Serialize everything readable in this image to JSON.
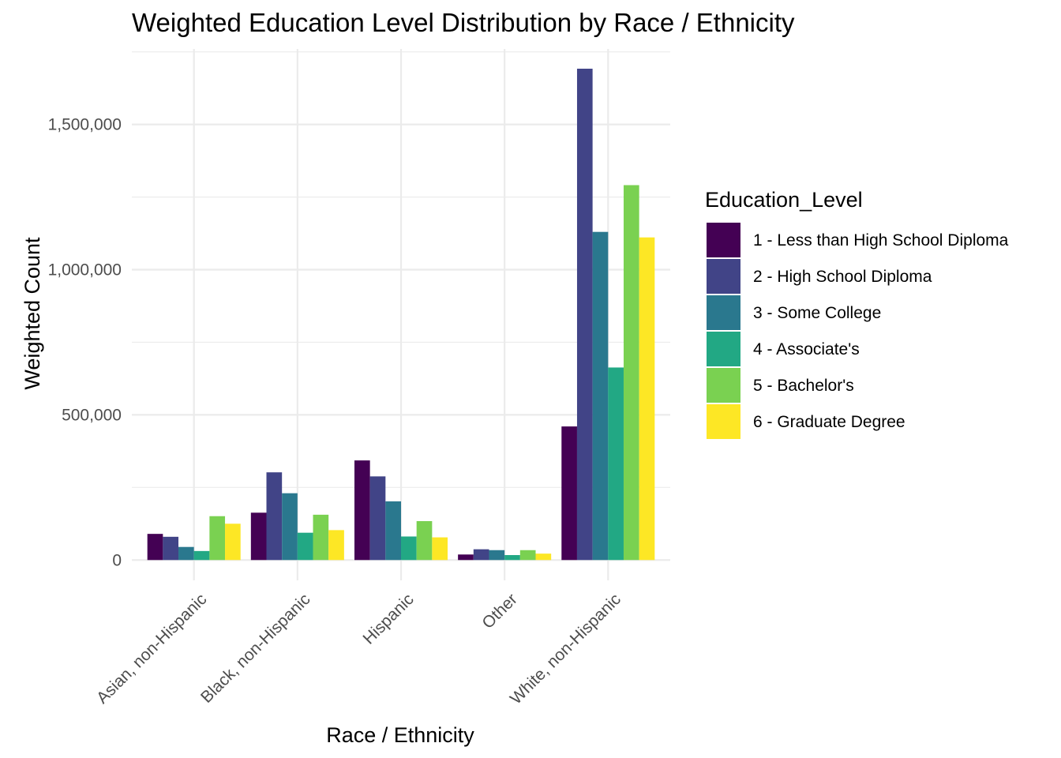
{
  "chart_data": {
    "type": "bar",
    "title": "Weighted Education Level Distribution by Race / Ethnicity",
    "xlabel": "Race / Ethnicity",
    "ylabel": "Weighted Count",
    "ylim": [
      -70000,
      1760000
    ],
    "y_ticks": [
      0,
      500000,
      1000000,
      1500000
    ],
    "y_tick_labels": [
      "0",
      "500,000",
      "1,000,000",
      "1,500,000"
    ],
    "grid": true,
    "legend_position": "right",
    "legend_title": "Education_Level",
    "categories": [
      "Asian, non-Hispanic",
      "Black, non-Hispanic",
      "Hispanic",
      "Other",
      "White, non-Hispanic"
    ],
    "series": [
      {
        "name": "1 - Less than High School Diploma",
        "color": "#440154",
        "values": [
          90000,
          163000,
          343000,
          19000,
          460000
        ]
      },
      {
        "name": "2 - High School Diploma",
        "color": "#414487",
        "values": [
          80000,
          302000,
          288000,
          37000,
          1692000
        ]
      },
      {
        "name": "3 - Some College",
        "color": "#2A788E",
        "values": [
          45000,
          230000,
          202000,
          34000,
          1130000
        ]
      },
      {
        "name": "4 - Associate's",
        "color": "#22A884",
        "values": [
          31000,
          94000,
          81000,
          17000,
          663000
        ]
      },
      {
        "name": "5 - Bachelor's",
        "color": "#7AD151",
        "values": [
          151000,
          156000,
          134000,
          34000,
          1291000
        ]
      },
      {
        "name": "6 - Graduate Degree",
        "color": "#FDE725",
        "values": [
          125000,
          103000,
          78000,
          22000,
          1111000
        ]
      }
    ]
  }
}
